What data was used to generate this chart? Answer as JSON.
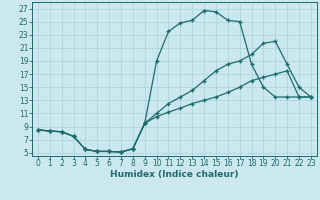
{
  "xlabel": "Humidex (Indice chaleur)",
  "bg_color": "#cce8ef",
  "line_color": "#1e6b6b",
  "grid_color": "#b0d8e0",
  "xlim": [
    -0.5,
    23.5
  ],
  "ylim": [
    4.5,
    28
  ],
  "xticks": [
    0,
    1,
    2,
    3,
    4,
    5,
    6,
    7,
    8,
    9,
    10,
    11,
    12,
    13,
    14,
    15,
    16,
    17,
    18,
    19,
    20,
    21,
    22,
    23
  ],
  "yticks": [
    5,
    7,
    9,
    11,
    13,
    15,
    17,
    19,
    21,
    23,
    25,
    27
  ],
  "line1_x": [
    0,
    1,
    2,
    3,
    4,
    5,
    6,
    7,
    8,
    9,
    10,
    11,
    12,
    13,
    14,
    15,
    16,
    17,
    18,
    19,
    20,
    21,
    22,
    23
  ],
  "line1_y": [
    8.5,
    8.3,
    8.2,
    7.5,
    5.5,
    5.2,
    5.2,
    5.1,
    5.6,
    9.5,
    19.0,
    23.5,
    24.8,
    25.2,
    26.7,
    26.5,
    25.2,
    25.0,
    18.5,
    15.0,
    13.5,
    13.5,
    13.5,
    13.5
  ],
  "line2_x": [
    0,
    1,
    2,
    3,
    4,
    5,
    6,
    7,
    8,
    9,
    10,
    11,
    12,
    13,
    14,
    15,
    16,
    17,
    18,
    19,
    20,
    21,
    22,
    23
  ],
  "line2_y": [
    8.5,
    8.3,
    8.2,
    7.5,
    5.5,
    5.2,
    5.2,
    5.1,
    5.6,
    9.5,
    11.0,
    12.5,
    13.5,
    14.5,
    16.0,
    17.5,
    18.5,
    19.0,
    20.0,
    21.7,
    22.0,
    18.5,
    15.0,
    13.5
  ],
  "line3_x": [
    0,
    1,
    2,
    3,
    4,
    5,
    6,
    7,
    8,
    9,
    10,
    11,
    12,
    13,
    14,
    15,
    16,
    17,
    18,
    19,
    20,
    21,
    22,
    23
  ],
  "line3_y": [
    8.5,
    8.3,
    8.2,
    7.5,
    5.5,
    5.2,
    5.2,
    5.1,
    5.6,
    9.5,
    10.5,
    11.2,
    11.8,
    12.5,
    13.0,
    13.5,
    14.2,
    15.0,
    16.0,
    16.5,
    17.0,
    17.5,
    13.5,
    13.5
  ],
  "marker": "+",
  "markersize": 3,
  "linewidth": 0.9,
  "tick_fontsize": 5.5,
  "xlabel_fontsize": 6.5
}
